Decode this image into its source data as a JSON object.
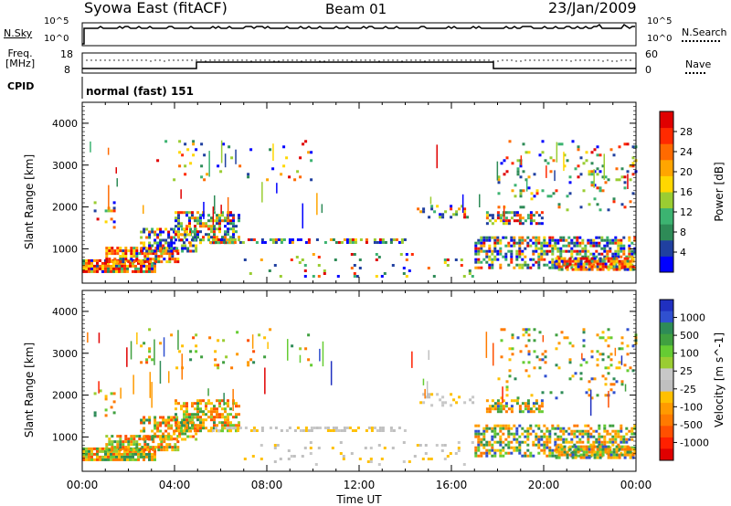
{
  "header": {
    "title": "Syowa East (fitACF)",
    "beam": "Beam 01",
    "date": "23/Jan/2009"
  },
  "top_panels": {
    "noise": {
      "left_label": "N.Sky",
      "right_label": "N.Search",
      "left_ticks": [
        "10^5",
        "10^0"
      ],
      "right_ticks": [
        "10^5",
        "10^0"
      ]
    },
    "freq": {
      "left_label_line1": "Freq.",
      "left_label_line2": "[MHz]",
      "left_ticks": [
        "18",
        "8"
      ],
      "right_label": "Nave",
      "right_ticks": [
        "60",
        "0"
      ]
    },
    "cpid": {
      "label": "CPID",
      "value": "normal (fast) 151"
    }
  },
  "chart_data": [
    {
      "type": "heatmap",
      "title": "",
      "xlabel": "Time UT",
      "ylabel": "Slant Range [km]",
      "xlim": [
        0,
        24
      ],
      "ylim": [
        180,
        4500
      ],
      "x_ticks": [
        "00:00",
        "04:00",
        "08:00",
        "12:00",
        "16:00",
        "20:00",
        "00:00"
      ],
      "y_ticks": [
        1000,
        2000,
        3000,
        4000
      ],
      "colorbar": {
        "label": "Power [dB]",
        "ticks": [
          "4",
          "8",
          "12",
          "16",
          "20",
          "24",
          "28"
        ],
        "colors": [
          "#0000ff",
          "#2040a0",
          "#2e8b57",
          "#3cb371",
          "#9acd32",
          "#ffd700",
          "#ffa500",
          "#ff6a00",
          "#ff2a00",
          "#e00000"
        ]
      }
    },
    {
      "type": "heatmap",
      "title": "",
      "xlabel": "Time UT",
      "ylabel": "Slant Range [km]",
      "xlim": [
        0,
        24
      ],
      "ylim": [
        180,
        4500
      ],
      "x_ticks": [
        "00:00",
        "04:00",
        "08:00",
        "12:00",
        "16:00",
        "20:00",
        "00:00"
      ],
      "y_ticks": [
        1000,
        2000,
        3000,
        4000
      ],
      "colorbar": {
        "label": "Velocity [m s^-1]",
        "ticks": [
          "1000",
          "500",
          "100",
          "25",
          "-25",
          "-100",
          "-500",
          "-1000"
        ],
        "colors": [
          "#2030c0",
          "#3050d0",
          "#2e8b57",
          "#40a040",
          "#66cc33",
          "#9acd32",
          "#c8c8c8",
          "#c0c0c0",
          "#ffc000",
          "#ff9a00",
          "#ff7a00",
          "#ff5000",
          "#ff2000",
          "#e00000"
        ]
      }
    }
  ]
}
